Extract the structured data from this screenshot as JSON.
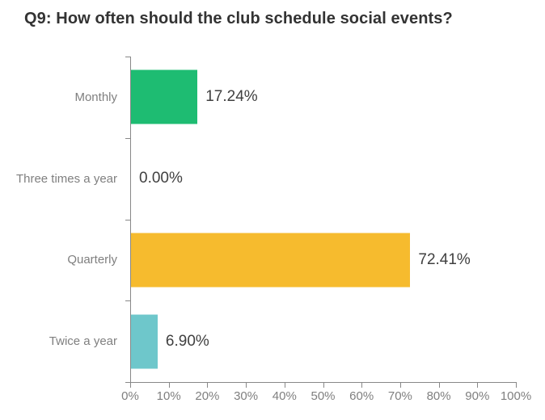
{
  "title": "Q9: How often should the club schedule social events?",
  "colors": {
    "background": "#ffffff",
    "title_text": "#333333",
    "axis": "#888888",
    "category_label": "#7f7f7f",
    "tick_label": "#7f7f7f",
    "value_label": "#404040"
  },
  "chart_data": {
    "type": "bar",
    "orientation": "horizontal",
    "title": "Q9: How often should the club schedule social events?",
    "categories": [
      "Monthly",
      "Three times a year",
      "Quarterly",
      "Twice a year"
    ],
    "values": [
      17.24,
      0.0,
      72.41,
      6.9
    ],
    "value_labels": [
      "17.24%",
      "0.00%",
      "72.41%",
      "6.90%"
    ],
    "bar_colors": [
      "#1ebc72",
      null,
      "#f6bb2e",
      "#6ec7cb"
    ],
    "xlim": [
      0,
      100
    ],
    "x_tick_labels": [
      "0%",
      "10%",
      "20%",
      "30%",
      "40%",
      "50%",
      "60%",
      "70%",
      "80%",
      "90%",
      "100%"
    ],
    "grid": false,
    "legend": false,
    "data_labels_position": "outside-end"
  }
}
